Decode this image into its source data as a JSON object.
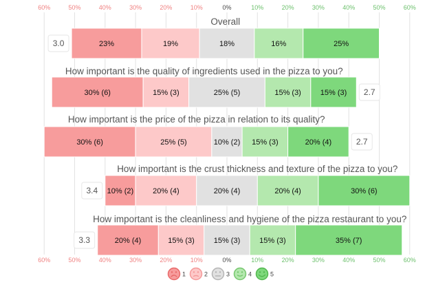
{
  "chart_data": {
    "type": "bar",
    "orientation": "horizontal",
    "stacked": "diverging",
    "grid": true,
    "xlim": [
      -60,
      60
    ],
    "ticks": [
      -60,
      -50,
      -40,
      -30,
      -20,
      -10,
      0,
      10,
      20,
      30,
      40,
      50,
      60
    ],
    "tick_labels": [
      "60%",
      "50%",
      "40%",
      "30%",
      "20%",
      "10%",
      "0%",
      "10%",
      "20%",
      "30%",
      "40%",
      "50%",
      "60%"
    ],
    "colors": {
      "tick_negative": "#f08080",
      "tick_neutral": "#444444",
      "tick_positive": "#6cc06c",
      "rating_1": "#f79c9c",
      "rating_2": "#fdc9c9",
      "rating_3": "#e1e1e1",
      "rating_4": "#b4e8ae",
      "rating_5": "#7ed87c"
    },
    "legend": {
      "placement": "bottom",
      "items": [
        {
          "label": "1",
          "face": "very-sad-face-icon"
        },
        {
          "label": "2",
          "face": "sad-face-icon"
        },
        {
          "label": "3",
          "face": "neutral-face-icon"
        },
        {
          "label": "4",
          "face": "happy-face-icon"
        },
        {
          "label": "5",
          "face": "very-happy-face-icon"
        }
      ]
    },
    "rows": [
      {
        "title": "Overall",
        "score": "3.0",
        "score_side": "left",
        "values": [
          23,
          19,
          18,
          16,
          25
        ],
        "labels": [
          "23%",
          "19%",
          "18%",
          "16%",
          "25%"
        ]
      },
      {
        "title": "How important is the quality of ingredients used in the pizza to you?",
        "score": "2.7",
        "score_side": "right",
        "values": [
          30,
          15,
          25,
          15,
          15
        ],
        "labels": [
          "30% (6)",
          "15% (3)",
          "25% (5)",
          "15% (3)",
          "15% (3)"
        ]
      },
      {
        "title": "How important is the price of the pizza in relation to its quality?",
        "score": "2.7",
        "score_side": "right",
        "values": [
          30,
          25,
          10,
          15,
          20
        ],
        "labels": [
          "30% (6)",
          "25% (5)",
          "10% (2)",
          "15% (3)",
          "20% (4)"
        ]
      },
      {
        "title": "How important is the crust thickness and texture of the pizza to you?",
        "score": "3.4",
        "score_side": "left",
        "values": [
          10,
          20,
          20,
          20,
          30
        ],
        "labels": [
          "10% (2)",
          "20% (4)",
          "20% (4)",
          "20% (4)",
          "30% (6)"
        ]
      },
      {
        "title": "How important is the cleanliness and hygiene of the pizza restaurant to you?",
        "score": "3.3",
        "score_side": "left",
        "values": [
          20,
          15,
          15,
          15,
          35
        ],
        "labels": [
          "20% (4)",
          "15% (3)",
          "15% (3)",
          "15% (3)",
          "35% (7)"
        ]
      }
    ]
  }
}
